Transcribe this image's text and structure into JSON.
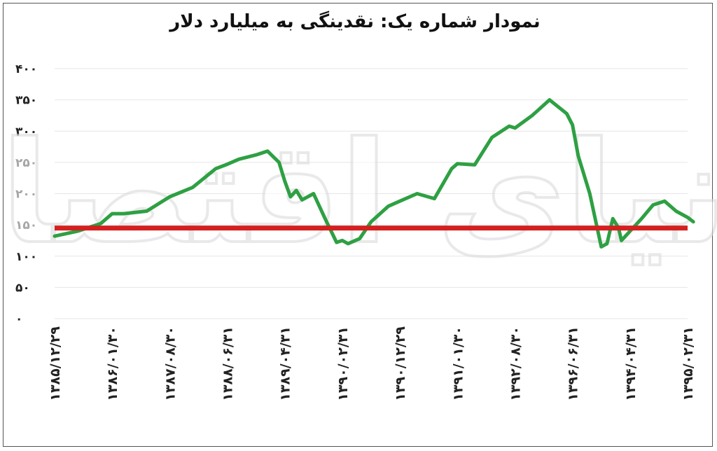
{
  "chart_data": {
    "type": "line",
    "title": "نمودار شماره یک: نقدینگی به میلیارد دلار",
    "xlabel": "",
    "ylabel": "",
    "ylim": [
      0,
      400
    ],
    "yticks": [
      "۰",
      "۵۰",
      "۱۰۰",
      "۱۵۰",
      "۲۰۰",
      "۲۵۰",
      "۳۰۰",
      "۳۵۰",
      "۴۰۰"
    ],
    "ytick_values": [
      0,
      50,
      100,
      150,
      200,
      250,
      300,
      350,
      400
    ],
    "categories": [
      "۱۳۸۵/۱۲/۲۹",
      "۱۳۸۶/۰۱/۳۰",
      "۱۳۸۷/۰۸/۳۰",
      "۱۳۸۸/۰۶/۳۱",
      "۱۳۸۹/۰۴/۳۱",
      "۱۳۹۰/۰۲/۳۱",
      "۱۳۹۰/۱۲/۲۹",
      "۱۳۹۱/۰۱/۳۰",
      "۱۳۹۲/۰۸/۳۰",
      "۱۳۹۶/۰۶/۳۱",
      "۱۳۹۴/۰۴/۳۱",
      "۱۳۹۵/۰۲/۳۱"
    ],
    "grid": true,
    "reference_line": {
      "value": 145,
      "color": "#d42020"
    },
    "series": [
      {
        "color": "#2ea043",
        "x": [
          0,
          0.4,
          0.8,
          1,
          1.2,
          1.6,
          2,
          2.4,
          2.8,
          3,
          3.2,
          3.5,
          3.7,
          3.9,
          4,
          4.1,
          4.2,
          4.3,
          4.5,
          4.7,
          4.9,
          5,
          5.1,
          5.3,
          5.5,
          5.8,
          6,
          6.3,
          6.6,
          6.9,
          7,
          7.3,
          7.6,
          7.9,
          8,
          8.3,
          8.6,
          8.9,
          9,
          9.1,
          9.3,
          9.5,
          9.6,
          9.7,
          9.8,
          9.85,
          9.9,
          10,
          10.2,
          10.4,
          10.6,
          10.8,
          11,
          11.1
        ],
        "values": [
          132,
          140,
          152,
          168,
          168,
          172,
          195,
          210,
          240,
          247,
          255,
          262,
          268,
          250,
          220,
          195,
          205,
          190,
          200,
          160,
          122,
          125,
          120,
          128,
          155,
          180,
          188,
          200,
          192,
          240,
          248,
          246,
          290,
          308,
          305,
          325,
          350,
          328,
          310,
          260,
          200,
          115,
          120,
          160,
          145,
          125,
          130,
          140,
          160,
          182,
          188,
          172,
          162,
          155
        ]
      }
    ],
    "watermark": "دنیای اقتصاد"
  }
}
